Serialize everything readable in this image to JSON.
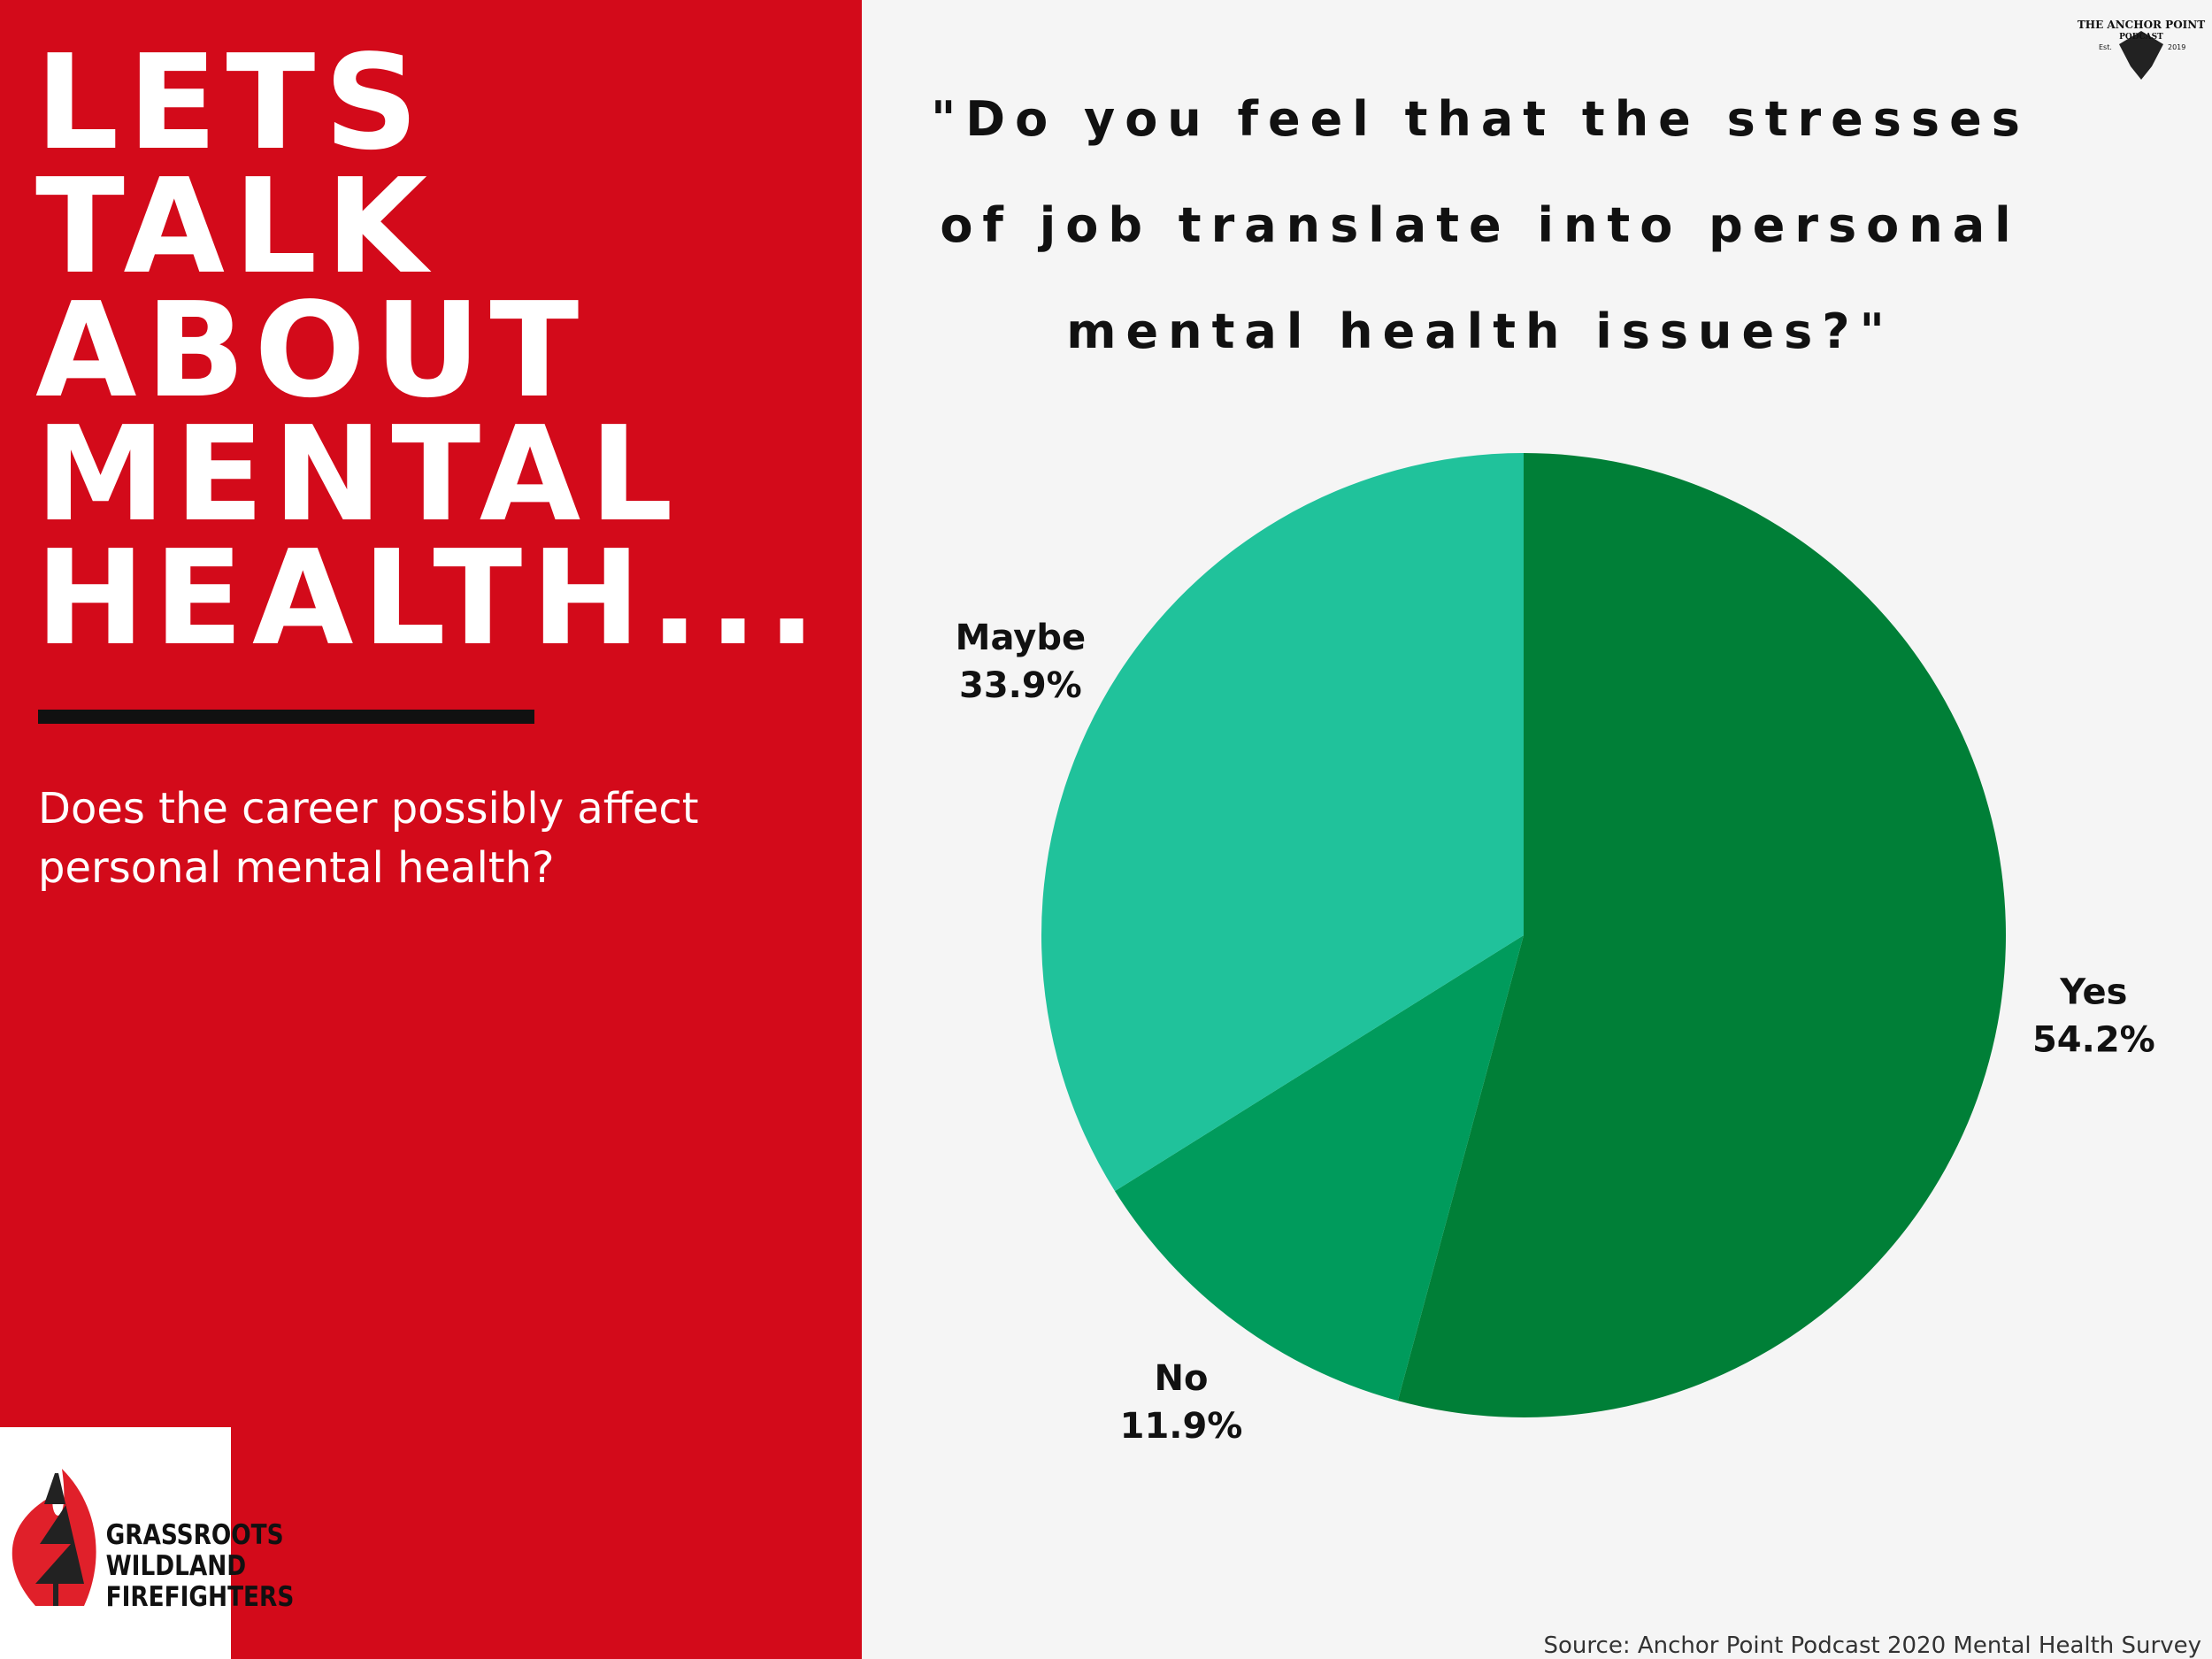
{
  "headline": [
    "LETS",
    "TALK",
    "ABOUT",
    "MENTAL",
    "HEALTH..."
  ],
  "subtitle": [
    "Does the career possibly affect",
    "personal mental health?"
  ],
  "source": "Source: Anchor Point Podcast 2020 Mental Health Survey",
  "podcast_logo": {
    "name": [
      "THE ANCHOR POINT",
      "PODCAST"
    ],
    "est": "Est.",
    "year": "2019"
  },
  "org_logo": [
    "GRASSROOTS",
    "WILDLAND",
    "FIREFIGHTERS"
  ],
  "chart_data": {
    "type": "pie",
    "title": [
      "\"Do you feel that the stresses",
      "of job translate into personal",
      "mental health issues?\""
    ],
    "categories": [
      "Yes",
      "No",
      "Maybe"
    ],
    "values": [
      54.2,
      11.9,
      33.9
    ],
    "value_labels": [
      "54.2%",
      "11.9%",
      "33.9%"
    ],
    "colors": [
      "#007f37",
      "#009b5c",
      "#20c29b"
    ]
  }
}
